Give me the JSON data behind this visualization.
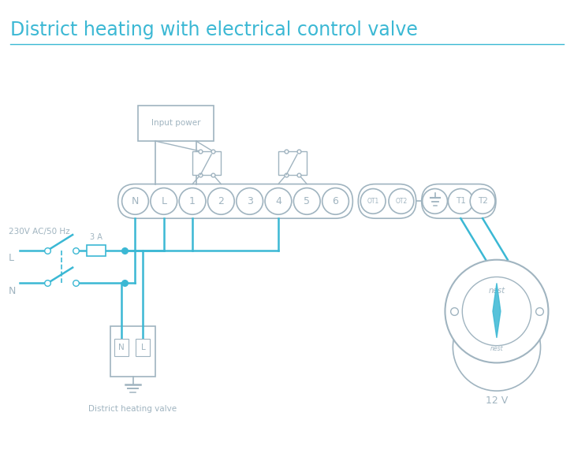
{
  "title": "District heating with electrical control valve",
  "title_color": "#3bb8d4",
  "bg_color": "#ffffff",
  "wire_color": "#3bb8d4",
  "box_color": "#a0b4c0",
  "terminal_main": [
    "N",
    "L",
    "1",
    "2",
    "3",
    "4",
    "5",
    "6"
  ],
  "terminal_ot": [
    "OT1",
    "OT2"
  ],
  "terminal_right": [
    "⊥",
    "T1",
    "T2"
  ],
  "label_230v": "230V AC/50 Hz",
  "label_L": "L",
  "label_N": "N",
  "label_3A": "3 A",
  "label_input_power": "Input power",
  "label_district": "District heating valve",
  "label_12v": "12 V",
  "figw": 7.28,
  "figh": 5.94,
  "dpi": 100
}
